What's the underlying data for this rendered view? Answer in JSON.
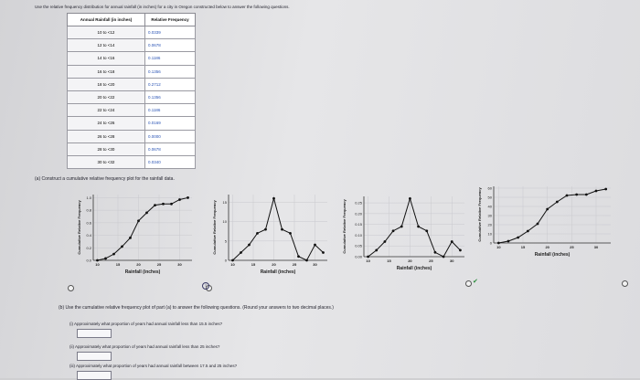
{
  "intro": "Use the relative frequency distribution for annual rainfall (in inches) for a city in Oregon constructed below to answer the following questions.",
  "table": {
    "headers": [
      "Annual Rainfall (in inches)",
      "Relative Frequency"
    ],
    "rows": [
      [
        "10 to <12",
        "0.0339"
      ],
      [
        "12 to <14",
        "0.0678"
      ],
      [
        "14 to <16",
        "0.1186"
      ],
      [
        "16 to <18",
        "0.1356"
      ],
      [
        "18 to <20",
        "0.2712"
      ],
      [
        "20 to <22",
        "0.1356"
      ],
      [
        "22 to <24",
        "0.1186"
      ],
      [
        "24 to <26",
        "0.0169"
      ],
      [
        "26 to <28",
        "0.0000"
      ],
      [
        "28 to <30",
        "0.0678"
      ],
      [
        "30 to <32",
        "0.0340"
      ]
    ]
  },
  "part_a": "(a) Construct a cumulative relative frequency plot for the rainfall data.",
  "graphs": [
    {
      "ylabel": "Cumulative Relative Frequency",
      "xlabel": "Rainfall (inches)",
      "xticks": [
        "10",
        "15",
        "20",
        "25",
        "30"
      ],
      "yticks": [
        "1.0",
        "0.8",
        "0.6",
        "0.4",
        "0.2",
        "0.0"
      ]
    },
    {
      "ylabel": "Cumulative Relative Frequency",
      "xlabel": "Rainfall (inches)",
      "xticks": [
        "10",
        "15",
        "20",
        "25",
        "30"
      ],
      "yticks": [
        "15",
        "10",
        "5",
        "0"
      ]
    },
    {
      "ylabel": "Cumulative Relative Frequency",
      "xlabel": "Rainfall (inches)",
      "xticks": [
        "10",
        "15",
        "20",
        "25",
        "30"
      ],
      "yticks": [
        "0.25",
        "0.20",
        "0.15",
        "0.10",
        "0.05",
        "0.00"
      ]
    },
    {
      "ylabel": "Cumulative Relative Frequency",
      "xlabel": "Rainfall (inches)",
      "xticks": [
        "10",
        "15",
        "20",
        "25",
        "30"
      ],
      "yticks": [
        "60",
        "50",
        "40",
        "30",
        "20",
        "10",
        "0"
      ]
    }
  ],
  "part_b": "(b) Use the cumulative relative frequency plot of part (a) to answer the following questions. (Round your answers to two decimal places.)",
  "questions": [
    "(i) Approximately what proportion of years had annual rainfall less than 15.5 inches?",
    "(ii) Approximately what proportion of years had annual rainfall less than 25 inches?",
    "(iii) Approximately what proportion of years had annual rainfall between 17.5 and 25 inches?"
  ],
  "chart_data": [
    {
      "type": "line",
      "x": [
        10,
        12,
        14,
        16,
        18,
        20,
        22,
        24,
        26,
        28,
        30,
        32
      ],
      "y": [
        0.0,
        0.03,
        0.1,
        0.22,
        0.36,
        0.63,
        0.76,
        0.88,
        0.9,
        0.9,
        0.97,
        1.0
      ],
      "xlabel": "Rainfall (inches)",
      "ylabel": "Cumulative Relative Frequency",
      "xlim": [
        9,
        33
      ],
      "ylim": [
        0,
        1.05
      ]
    },
    {
      "type": "line",
      "x": [
        10,
        12,
        14,
        16,
        18,
        20,
        22,
        24,
        26,
        28,
        30,
        32
      ],
      "y": [
        0,
        2,
        4,
        7,
        8,
        16,
        8,
        7,
        1,
        0,
        4,
        2
      ],
      "xlabel": "Rainfall (inches)",
      "ylabel": "Cumulative Relative Frequency",
      "xlim": [
        9,
        33
      ],
      "ylim": [
        0,
        17
      ]
    },
    {
      "type": "line",
      "x": [
        10,
        12,
        14,
        16,
        18,
        20,
        22,
        24,
        26,
        28,
        30,
        32
      ],
      "y": [
        0.0,
        0.03,
        0.07,
        0.12,
        0.14,
        0.27,
        0.14,
        0.12,
        0.02,
        0.0,
        0.07,
        0.03
      ],
      "xlabel": "Rainfall (inches)",
      "ylabel": "Cumulative Relative Frequency",
      "xlim": [
        9,
        33
      ],
      "ylim": [
        0,
        0.28
      ]
    },
    {
      "type": "line",
      "x": [
        10,
        12,
        14,
        16,
        18,
        20,
        22,
        24,
        26,
        28,
        30,
        32
      ],
      "y": [
        0,
        2,
        6,
        13,
        21,
        37,
        45,
        52,
        53,
        53,
        57,
        59
      ],
      "xlabel": "Rainfall (inches)",
      "ylabel": "Cumulative Relative Frequency",
      "xlim": [
        9,
        33
      ],
      "ylim": [
        0,
        62
      ]
    }
  ]
}
